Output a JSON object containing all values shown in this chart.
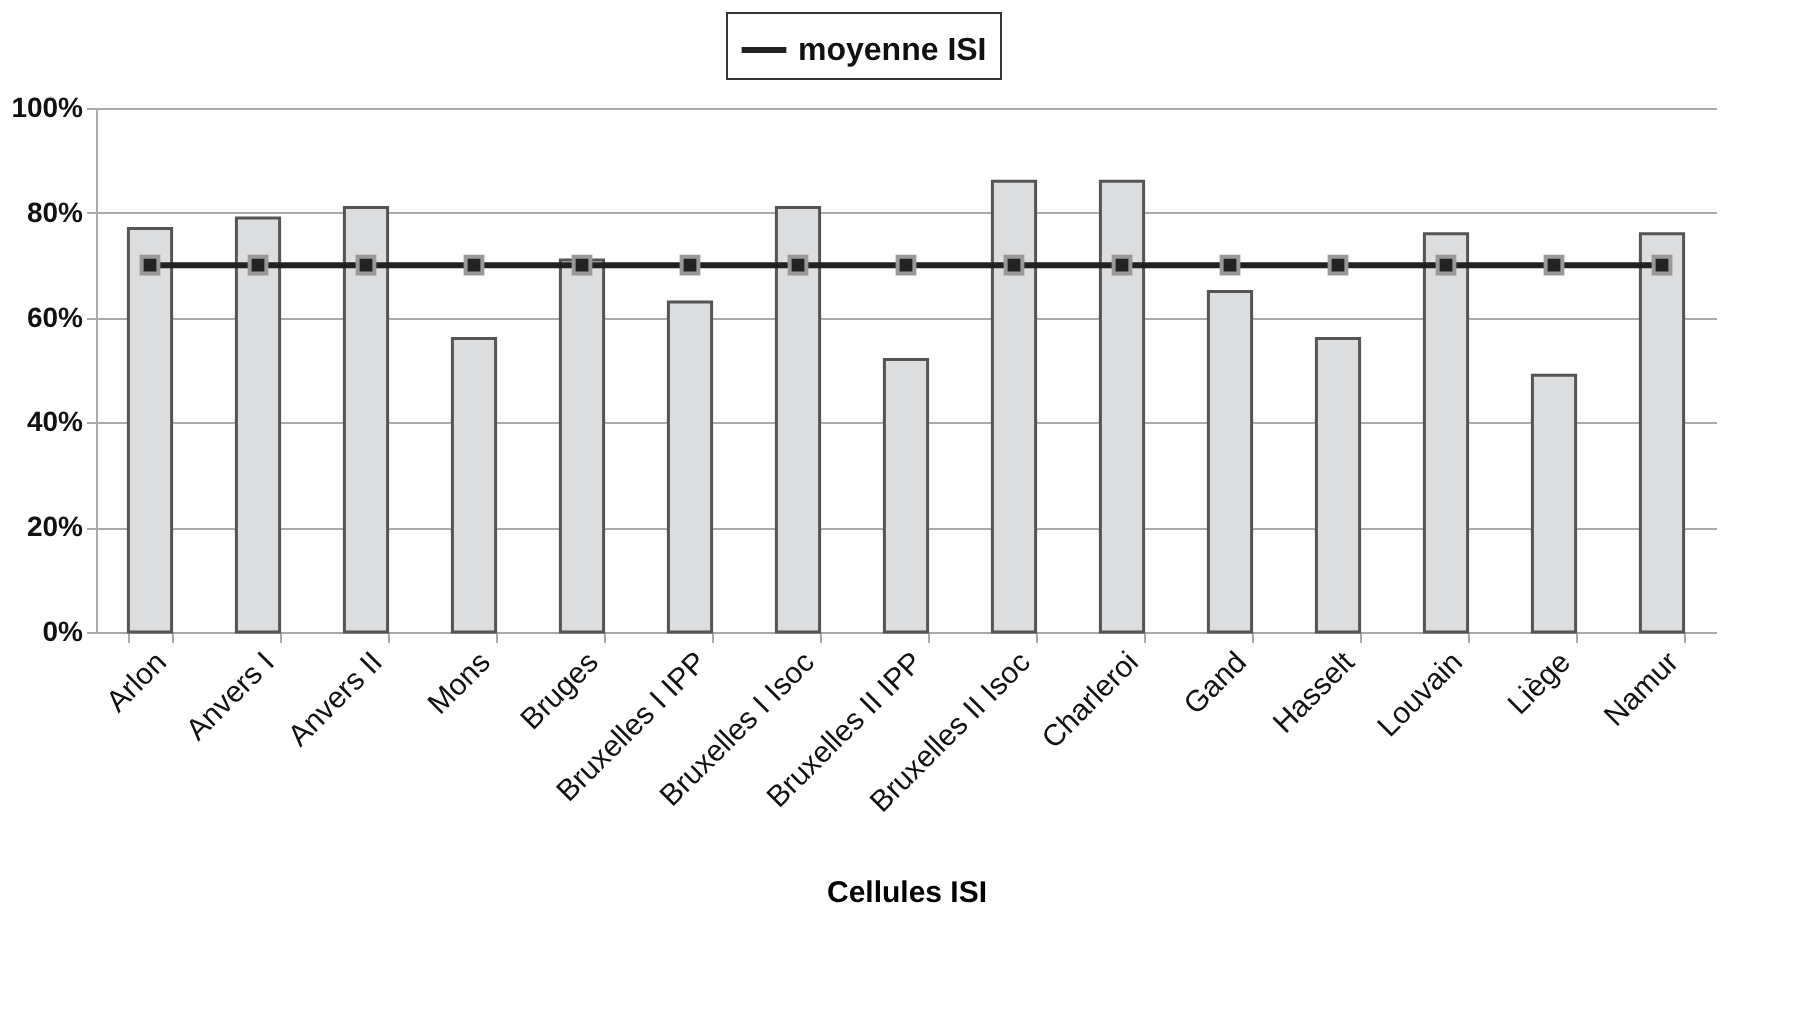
{
  "chart_data": {
    "type": "bar",
    "xlabel": "Cellules ISI",
    "categories": [
      "Arlon",
      "Anvers   I",
      "Anvers II",
      "Mons",
      "Bruges",
      "Bruxelles I IPP",
      "Bruxelles I Isoc",
      "Bruxelles II IPP",
      "Bruxelles II Isoc",
      "Charleroi",
      "Gand",
      "Hasselt",
      "Louvain",
      "Liège",
      "Namur"
    ],
    "series": [
      {
        "color": "#dcdddf",
        "values": [
          77,
          79,
          81,
          56,
          71,
          63,
          81,
          52,
          86,
          86,
          65,
          56,
          76,
          49,
          76
        ]
      },
      {
        "type": "line",
        "name": "moyenne ISI",
        "color": "#222222",
        "marker": "square",
        "values": [
          70,
          70,
          70,
          70,
          70,
          70,
          70,
          70,
          70,
          70,
          70,
          70,
          70,
          70,
          70
        ]
      }
    ],
    "ylim": [
      0,
      100
    ],
    "yticks": [
      {
        "value": 0,
        "label": "0%"
      },
      {
        "value": 20,
        "label": "20%"
      },
      {
        "value": 40,
        "label": "40%"
      },
      {
        "value": 60,
        "label": "60%"
      },
      {
        "value": 80,
        "label": "80%"
      },
      {
        "value": 100,
        "label": "100%"
      }
    ],
    "grid": "y",
    "legend": "top"
  }
}
